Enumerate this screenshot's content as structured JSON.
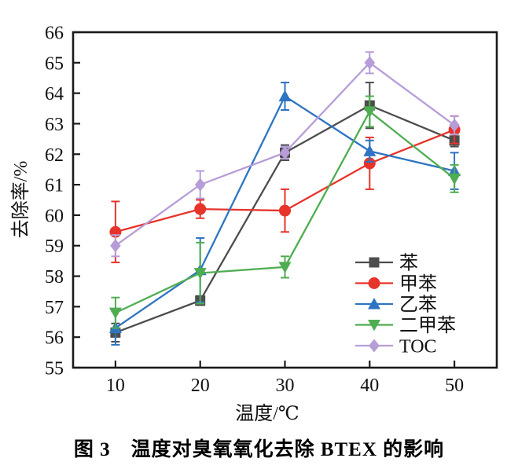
{
  "figure": {
    "caption": "图 3　温度对臭氧氧化去除 BTEX 的影响"
  },
  "chart_data": {
    "type": "line",
    "title": "",
    "xlabel": "温度/℃",
    "ylabel": "去除率/%",
    "x": [
      10,
      20,
      30,
      40,
      50
    ],
    "xticks": [
      10,
      20,
      30,
      40,
      50
    ],
    "yticks": [
      55,
      56,
      57,
      58,
      59,
      60,
      61,
      62,
      63,
      64,
      65,
      66
    ],
    "xlim": [
      5,
      55
    ],
    "ylim": [
      55,
      66
    ],
    "grid": false,
    "error_bars": true,
    "legend_position": "inside-lower-right",
    "frame_color": "#1a1a1a",
    "series": [
      {
        "id": "benzene",
        "name": "苯",
        "marker": "square",
        "color": "#4d4d4d",
        "values": [
          56.15,
          57.2,
          62.05,
          63.6,
          62.45
        ],
        "errors": [
          0.3,
          0.15,
          0.25,
          0.75,
          0.2
        ]
      },
      {
        "id": "toluene",
        "name": "甲苯",
        "marker": "circle",
        "color": "#e6342b",
        "values": [
          59.45,
          60.2,
          60.15,
          61.7,
          62.8
        ],
        "errors": [
          1.0,
          0.3,
          0.7,
          0.85,
          0.45
        ]
      },
      {
        "id": "ethylbenzene",
        "name": "乙苯",
        "marker": "triangle-up",
        "color": "#2e74c2",
        "values": [
          56.3,
          58.2,
          63.9,
          62.1,
          61.45
        ],
        "errors": [
          0.55,
          1.05,
          0.45,
          0.35,
          0.6
        ]
      },
      {
        "id": "xylene",
        "name": "二甲苯",
        "marker": "triangle-down",
        "color": "#4fad51",
        "values": [
          56.8,
          58.1,
          58.3,
          63.4,
          61.2
        ],
        "errors": [
          0.5,
          1.0,
          0.35,
          0.5,
          0.45
        ]
      },
      {
        "id": "toc",
        "name": "TOC",
        "marker": "diamond",
        "color": "#b79dd8",
        "values": [
          59.0,
          61.0,
          62.05,
          65.0,
          62.95
        ],
        "errors": [
          0.35,
          0.45,
          0.2,
          0.35,
          0.3
        ]
      }
    ]
  }
}
